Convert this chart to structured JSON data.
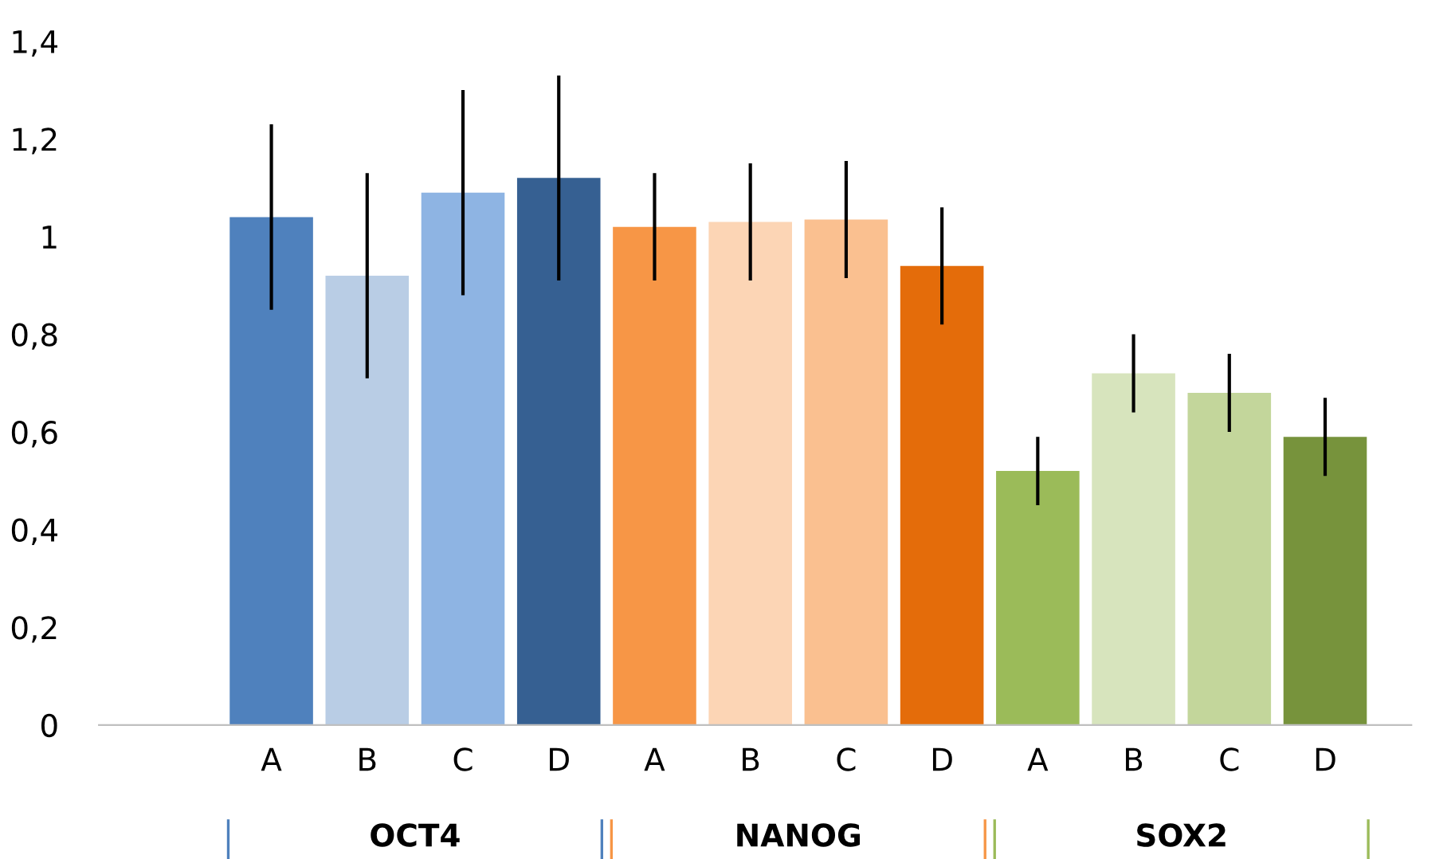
{
  "chart_data": {
    "type": "bar",
    "categories": [
      "A",
      "B",
      "C",
      "D",
      "A",
      "B",
      "C",
      "D",
      "A",
      "B",
      "C",
      "D"
    ],
    "values": [
      1.04,
      0.92,
      1.09,
      1.12,
      1.02,
      1.03,
      1.035,
      0.94,
      0.52,
      0.72,
      0.68,
      0.59
    ],
    "errors": [
      0.19,
      0.21,
      0.21,
      0.21,
      0.11,
      0.12,
      0.12,
      0.12,
      0.07,
      0.08,
      0.08,
      0.08
    ],
    "colors": [
      "#4f81bd",
      "#b9cde5",
      "#8eb4e3",
      "#366092",
      "#f79646",
      "#fcd5b5",
      "#fac090",
      "#e46c0a",
      "#9bbb59",
      "#d7e4bd",
      "#c3d69b",
      "#77933c"
    ],
    "annotations": [
      "OCT4",
      "NANOG",
      "SOX2"
    ],
    "ylim": [
      0,
      1.4
    ],
    "yticks": [
      0,
      {
        "value": 0.2,
        "label": "0,2"
      },
      {
        "value": 0.4,
        "label": "0,4"
      },
      {
        "value": 0.6,
        "label": "0,6"
      },
      {
        "value": 0.8,
        "label": "0,8"
      },
      1,
      {
        "value": 1.2,
        "label": "1,2"
      },
      {
        "value": 1.4,
        "label": "1,4"
      }
    ],
    "grid": false,
    "legend": false
  }
}
